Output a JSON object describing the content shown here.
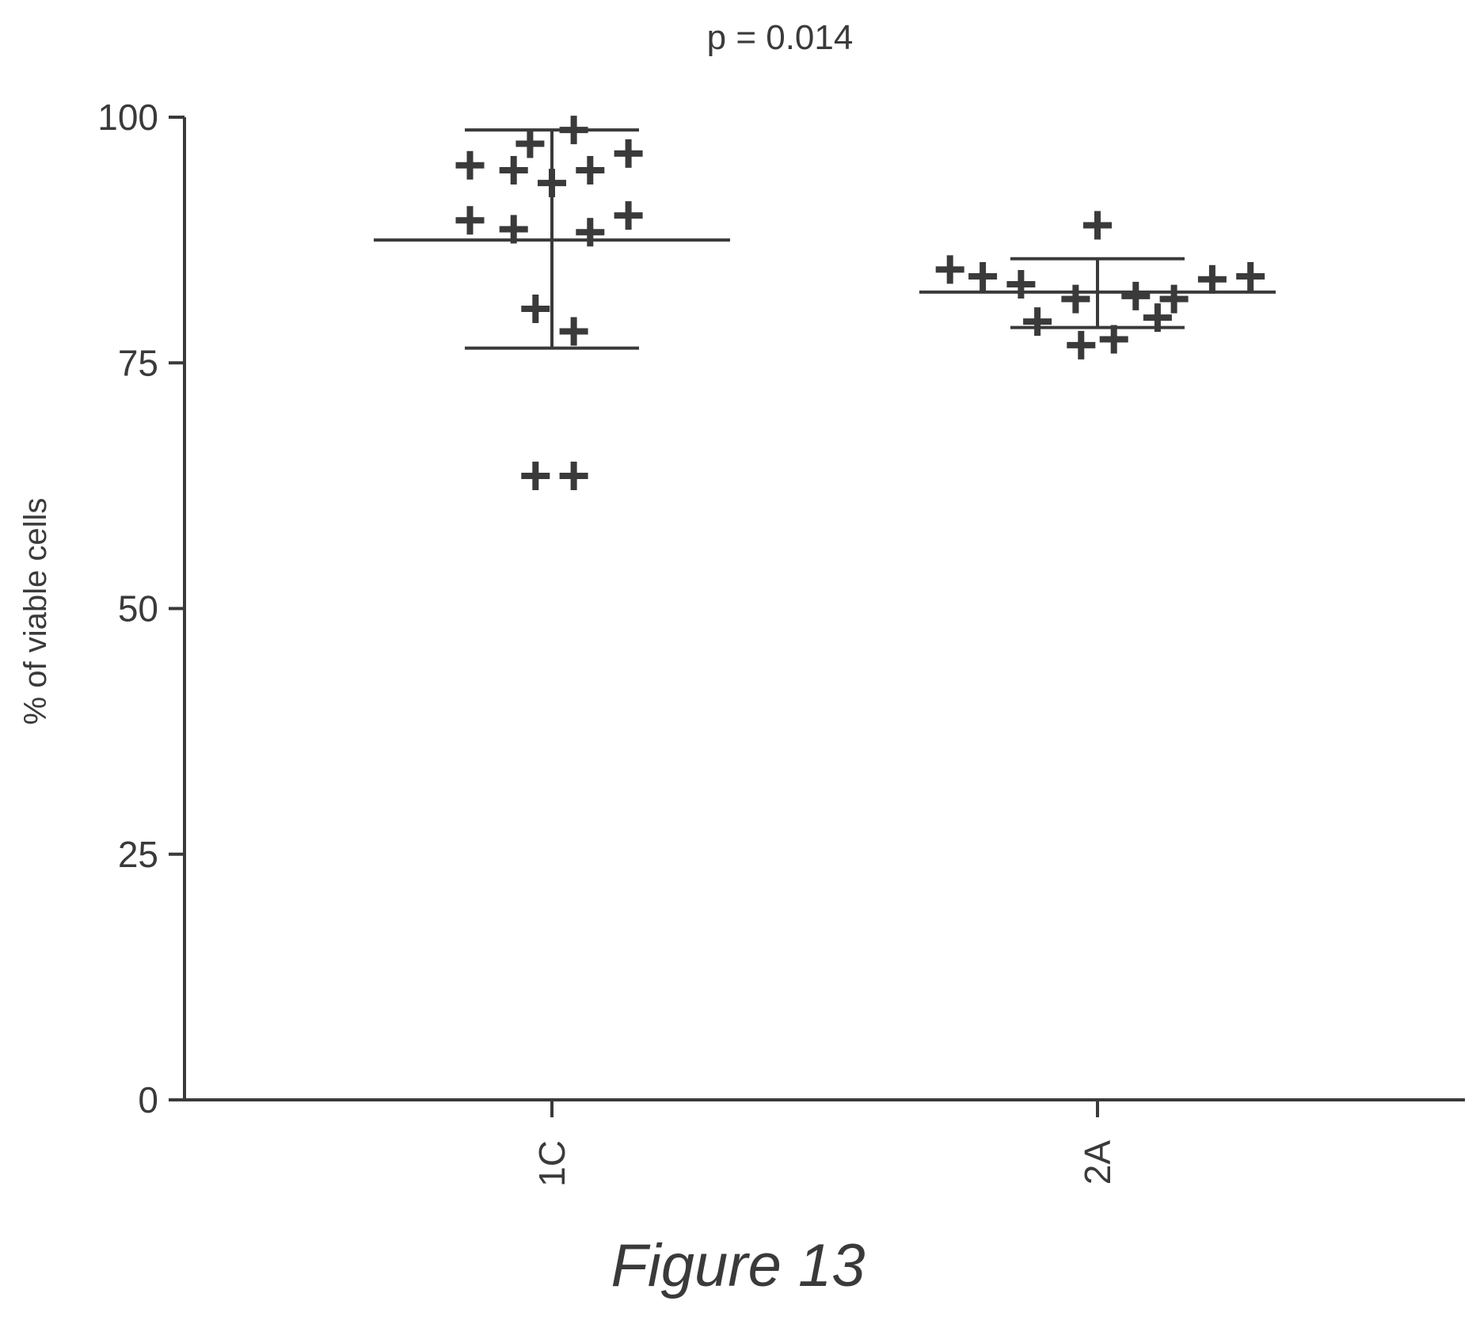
{
  "figure_caption": "Figure 13",
  "chart_data": {
    "type": "scatter",
    "title": "p = 0.014",
    "xlabel": "",
    "ylabel": "% of viable cells",
    "ylim": [
      0,
      100
    ],
    "yticks": [
      0,
      25,
      50,
      75,
      100
    ],
    "categories": [
      "1C",
      "2A"
    ],
    "grid": false,
    "legend": "none",
    "marker": "plus",
    "color": "#3a3a3a",
    "groups": [
      {
        "category": "1C",
        "mean": 87.5,
        "sd_low": 76.5,
        "sd_high": 98.7,
        "points": [
          {
            "x_offset": 0.0,
            "y": 93.3
          },
          {
            "x_offset": -0.04,
            "y": 97.3
          },
          {
            "x_offset": 0.04,
            "y": 98.7
          },
          {
            "x_offset": -0.15,
            "y": 95.1
          },
          {
            "x_offset": -0.07,
            "y": 94.6
          },
          {
            "x_offset": 0.07,
            "y": 94.6
          },
          {
            "x_offset": 0.14,
            "y": 96.3
          },
          {
            "x_offset": -0.15,
            "y": 89.5
          },
          {
            "x_offset": -0.07,
            "y": 88.6
          },
          {
            "x_offset": 0.07,
            "y": 88.3
          },
          {
            "x_offset": 0.14,
            "y": 90.0
          },
          {
            "x_offset": -0.03,
            "y": 80.5
          },
          {
            "x_offset": 0.04,
            "y": 78.2
          },
          {
            "x_offset": -0.03,
            "y": 63.5
          },
          {
            "x_offset": 0.04,
            "y": 63.5
          }
        ]
      },
      {
        "category": "2A",
        "mean": 82.2,
        "sd_low": 78.6,
        "sd_high": 85.6,
        "points": [
          {
            "x_offset": 0.0,
            "y": 89.0
          },
          {
            "x_offset": -0.27,
            "y": 84.5
          },
          {
            "x_offset": -0.21,
            "y": 83.8
          },
          {
            "x_offset": -0.14,
            "y": 83.0
          },
          {
            "x_offset": -0.04,
            "y": 81.5
          },
          {
            "x_offset": 0.07,
            "y": 81.8
          },
          {
            "x_offset": 0.14,
            "y": 81.5
          },
          {
            "x_offset": 0.21,
            "y": 83.5
          },
          {
            "x_offset": 0.28,
            "y": 83.8
          },
          {
            "x_offset": -0.11,
            "y": 79.2
          },
          {
            "x_offset": 0.11,
            "y": 79.6
          },
          {
            "x_offset": -0.03,
            "y": 76.8
          },
          {
            "x_offset": 0.03,
            "y": 77.4
          }
        ]
      }
    ]
  }
}
